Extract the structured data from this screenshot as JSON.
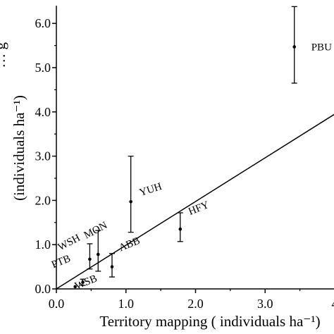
{
  "chart_data": {
    "type": "scatter",
    "xlabel": "Territory mapping ( individuals ha⁻¹)",
    "ylabel": "(individuals ha⁻¹)",
    "ylabel_partial": "… g",
    "xlim": [
      0.0,
      4.0
    ],
    "ylim": [
      0.0,
      6.4
    ],
    "x_ticks": [
      "0.0",
      "1.0",
      "2.0",
      "3.0",
      "4"
    ],
    "y_ticks": [
      "0.0",
      "1.0",
      "2.0",
      "3.0",
      "4.0",
      "5.0",
      "6.0"
    ],
    "points": [
      {
        "label": "PBU",
        "x": 3.42,
        "y": 5.47,
        "err_low": 4.65,
        "err_high": 6.38
      },
      {
        "label": "YUH",
        "x": 1.07,
        "y": 1.97,
        "err_low": 1.28,
        "err_high": 3.0
      },
      {
        "label": "HFY",
        "x": 1.78,
        "y": 1.35,
        "err_low": 1.07,
        "err_high": 1.72
      },
      {
        "label": "MON",
        "x": 0.6,
        "y": 0.78,
        "err_low": 0.4,
        "err_high": 1.32
      },
      {
        "label": "WSH",
        "x": 0.48,
        "y": 0.67,
        "err_low": 0.45,
        "err_high": 1.02
      },
      {
        "label": "ABB",
        "x": 0.8,
        "y": 0.5,
        "err_low": 0.27,
        "err_high": 0.8
      },
      {
        "label": "PTB",
        "x": 0.38,
        "y": 0.15,
        "err_low": 0.08,
        "err_high": 0.22
      },
      {
        "label": "WSB",
        "x": 0.27,
        "y": 0.05,
        "err_low": 0.05,
        "err_high": 0.05
      }
    ],
    "reference_line": {
      "x": [
        0.0,
        4.0
      ],
      "y": [
        0.0,
        3.95
      ]
    },
    "grid": false,
    "legend": "none"
  }
}
